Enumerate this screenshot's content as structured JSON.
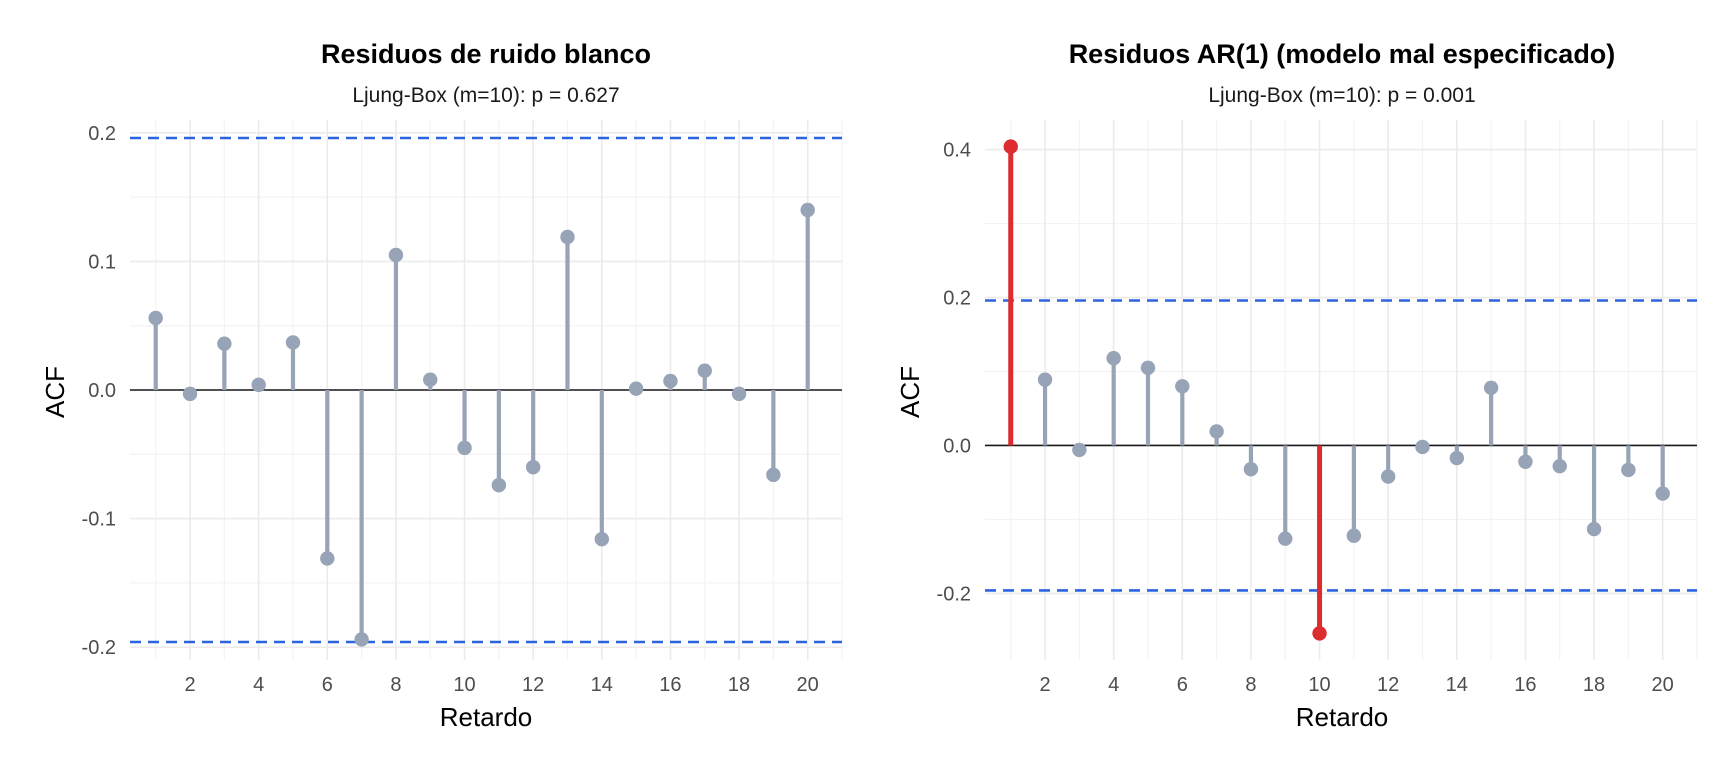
{
  "chart_data": [
    {
      "type": "lollipop",
      "title": "Residuos de ruido blanco",
      "subtitle": "Ljung-Box (m=10): p = 0.627",
      "xlabel": "Retardo",
      "ylabel": "ACF",
      "xlim": [
        0.25,
        21.0
      ],
      "ylim": [
        -0.21,
        0.21
      ],
      "x_ticks": [
        2,
        4,
        6,
        8,
        10,
        12,
        14,
        16,
        18,
        20
      ],
      "y_ticks": [
        -0.2,
        -0.1,
        0.0,
        0.1,
        0.2
      ],
      "y_tick_labels": [
        "-0.2",
        "-0.1",
        "0.0",
        "0.1",
        "0.2"
      ],
      "confidence_bounds": [
        0.196,
        -0.196
      ],
      "lags": [
        1,
        2,
        3,
        4,
        5,
        6,
        7,
        8,
        9,
        10,
        11,
        12,
        13,
        14,
        15,
        16,
        17,
        18,
        19,
        20
      ],
      "values": [
        0.056,
        -0.003,
        0.036,
        0.004,
        0.037,
        -0.131,
        -0.194,
        0.105,
        0.008,
        -0.045,
        -0.074,
        -0.06,
        0.119,
        -0.116,
        0.001,
        0.007,
        0.015,
        -0.003,
        -0.066,
        0.14
      ],
      "highlighted": [],
      "colors": {
        "stem": "#97a3b6",
        "highlight": "#dd2c2f",
        "bounds": "#2b63e0",
        "zero": "#1a1a1a",
        "grid": "#ebebeb"
      },
      "grid": true
    },
    {
      "type": "lollipop",
      "title": "Residuos AR(1) (modelo mal especificado)",
      "subtitle": "Ljung-Box (m=10): p = 0.001",
      "xlabel": "Retardo",
      "ylabel": "ACF",
      "xlim": [
        0.25,
        21.0
      ],
      "ylim": [
        -0.29,
        0.44
      ],
      "x_ticks": [
        2,
        4,
        6,
        8,
        10,
        12,
        14,
        16,
        18,
        20
      ],
      "y_ticks": [
        -0.2,
        0.0,
        0.2,
        0.4
      ],
      "y_tick_labels": [
        "-0.2",
        "0.0",
        "0.2",
        "0.4"
      ],
      "confidence_bounds": [
        0.196,
        -0.196
      ],
      "lags": [
        1,
        2,
        3,
        4,
        5,
        6,
        7,
        8,
        9,
        10,
        11,
        12,
        13,
        14,
        15,
        16,
        17,
        18,
        19,
        20
      ],
      "values": [
        0.404,
        0.089,
        -0.006,
        0.118,
        0.105,
        0.08,
        0.019,
        -0.032,
        -0.126,
        -0.254,
        -0.122,
        -0.042,
        -0.002,
        -0.017,
        0.078,
        -0.022,
        -0.028,
        -0.113,
        -0.033,
        -0.065
      ],
      "highlighted": [
        1,
        10
      ],
      "colors": {
        "stem": "#97a3b6",
        "highlight": "#dd2c2f",
        "bounds": "#2b63e0",
        "zero": "#1a1a1a",
        "grid": "#ebebeb"
      },
      "grid": true
    }
  ]
}
